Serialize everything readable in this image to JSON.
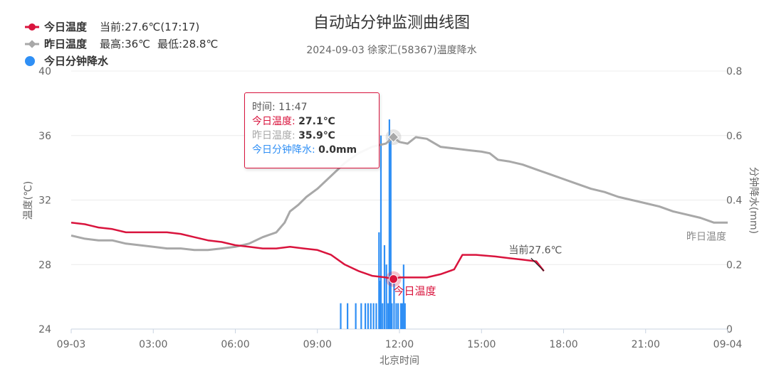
{
  "title": "自动站分钟监测曲线图",
  "subtitle": "2024-09-03 徐家汇(58367)温度降水",
  "legend": {
    "today": {
      "name": "今日温度",
      "stat": "当前:27.6℃(17:17)"
    },
    "yesterday": {
      "name": "昨日温度",
      "stat1": "最高:36℃",
      "stat2": "最低:28.8℃"
    },
    "rain": {
      "name": "今日分钟降水"
    }
  },
  "colors": {
    "today": "#d9143d",
    "yesterday": "#a8a8a8",
    "rain": "#2f8ff5"
  },
  "tooltip": {
    "time_label": "时间: ",
    "time": "11:47",
    "today_label": "今日温度: ",
    "today": "27.1℃",
    "yesterday_label": "昨日温度: ",
    "yesterday": "35.9℃",
    "rain_label": "今日分钟降水: ",
    "rain": "0.0mm"
  },
  "annotations": {
    "current": "当前27.6℃",
    "today_series_label": "今日温度",
    "yesterday_series_label": "昨日温度"
  },
  "chart_data": {
    "type": "line",
    "xlabel": "北京时间",
    "ylabel_left": "温度(℃)",
    "ylabel_right": "分钟降水(mm)",
    "x_ticks": [
      "09-03",
      "03:00",
      "06:00",
      "09:00",
      "12:00",
      "15:00",
      "18:00",
      "21:00",
      "09-04"
    ],
    "y_left_ticks": [
      "24",
      "28",
      "32",
      "36",
      "40"
    ],
    "y_right_ticks": [
      "0",
      "0.2",
      "0.4",
      "0.6",
      "0.8"
    ],
    "ylim_left": [
      24,
      40
    ],
    "ylim_right": [
      0,
      0.8
    ],
    "x_range_hours": [
      0,
      24
    ],
    "series": [
      {
        "name": "今日温度",
        "unit": "℃",
        "points": [
          [
            0,
            30.6
          ],
          [
            0.5,
            30.5
          ],
          [
            1,
            30.3
          ],
          [
            1.5,
            30.2
          ],
          [
            2,
            30.0
          ],
          [
            2.5,
            30.0
          ],
          [
            3,
            30.0
          ],
          [
            3.5,
            30.0
          ],
          [
            4,
            29.9
          ],
          [
            4.5,
            29.7
          ],
          [
            5,
            29.5
          ],
          [
            5.5,
            29.4
          ],
          [
            6,
            29.2
          ],
          [
            6.5,
            29.1
          ],
          [
            7,
            29.0
          ],
          [
            7.5,
            29.0
          ],
          [
            8,
            29.1
          ],
          [
            8.5,
            29.0
          ],
          [
            9,
            28.9
          ],
          [
            9.5,
            28.6
          ],
          [
            10,
            28.0
          ],
          [
            10.5,
            27.6
          ],
          [
            11,
            27.3
          ],
          [
            11.5,
            27.2
          ],
          [
            11.78,
            27.1
          ],
          [
            12,
            27.2
          ],
          [
            12.5,
            27.2
          ],
          [
            13,
            27.2
          ],
          [
            13.5,
            27.4
          ],
          [
            14,
            27.7
          ],
          [
            14.3,
            28.6
          ],
          [
            14.8,
            28.6
          ],
          [
            15.5,
            28.5
          ],
          [
            16,
            28.4
          ],
          [
            16.5,
            28.3
          ],
          [
            17,
            28.2
          ],
          [
            17.28,
            27.6
          ]
        ]
      },
      {
        "name": "昨日温度",
        "unit": "℃",
        "points": [
          [
            0,
            29.8
          ],
          [
            0.5,
            29.6
          ],
          [
            1,
            29.5
          ],
          [
            1.5,
            29.5
          ],
          [
            2,
            29.3
          ],
          [
            2.5,
            29.2
          ],
          [
            3,
            29.1
          ],
          [
            3.5,
            29.0
          ],
          [
            4,
            29.0
          ],
          [
            4.5,
            28.9
          ],
          [
            5,
            28.9
          ],
          [
            5.5,
            29.0
          ],
          [
            6,
            29.1
          ],
          [
            6.5,
            29.3
          ],
          [
            7,
            29.7
          ],
          [
            7.5,
            30.0
          ],
          [
            7.8,
            30.6
          ],
          [
            8,
            31.3
          ],
          [
            8.3,
            31.7
          ],
          [
            8.6,
            32.2
          ],
          [
            9,
            32.7
          ],
          [
            9.5,
            33.5
          ],
          [
            10,
            34.3
          ],
          [
            10.5,
            34.9
          ],
          [
            11,
            35.3
          ],
          [
            11.5,
            35.5
          ],
          [
            11.78,
            35.9
          ],
          [
            12,
            35.6
          ],
          [
            12.3,
            35.5
          ],
          [
            12.6,
            35.9
          ],
          [
            13,
            35.8
          ],
          [
            13.5,
            35.3
          ],
          [
            14,
            35.2
          ],
          [
            14.5,
            35.1
          ],
          [
            15,
            35.0
          ],
          [
            15.3,
            34.9
          ],
          [
            15.6,
            34.5
          ],
          [
            16,
            34.4
          ],
          [
            16.5,
            34.2
          ],
          [
            17,
            33.9
          ],
          [
            17.5,
            33.6
          ],
          [
            18,
            33.3
          ],
          [
            18.5,
            33.0
          ],
          [
            19,
            32.7
          ],
          [
            19.5,
            32.5
          ],
          [
            20,
            32.2
          ],
          [
            20.5,
            32.0
          ],
          [
            21,
            31.8
          ],
          [
            21.5,
            31.6
          ],
          [
            22,
            31.3
          ],
          [
            22.5,
            31.1
          ],
          [
            23,
            30.9
          ],
          [
            23.5,
            30.6
          ],
          [
            24,
            30.6
          ]
        ]
      },
      {
        "name": "今日分钟降水",
        "unit": "mm",
        "type": "bar",
        "points": [
          [
            9.85,
            0.08
          ],
          [
            10.1,
            0.08
          ],
          [
            10.4,
            0.08
          ],
          [
            10.6,
            0.08
          ],
          [
            10.75,
            0.08
          ],
          [
            10.85,
            0.08
          ],
          [
            10.95,
            0.08
          ],
          [
            11.05,
            0.08
          ],
          [
            11.15,
            0.08
          ],
          [
            11.25,
            0.3
          ],
          [
            11.28,
            0.15
          ],
          [
            11.32,
            0.6
          ],
          [
            11.38,
            0.08
          ],
          [
            11.45,
            0.26
          ],
          [
            11.52,
            0.2
          ],
          [
            11.58,
            0.08
          ],
          [
            11.63,
            0.65
          ],
          [
            11.68,
            0.6
          ],
          [
            11.72,
            0.08
          ],
          [
            11.8,
            0.15
          ],
          [
            11.88,
            0.08
          ],
          [
            11.95,
            0.08
          ],
          [
            12.05,
            0.08
          ],
          [
            12.1,
            0.08
          ],
          [
            12.15,
            0.2
          ],
          [
            12.2,
            0.08
          ]
        ]
      }
    ],
    "hover": {
      "time_hours": 11.78,
      "today": 27.1,
      "yesterday": 35.9,
      "rain": 0.0
    }
  }
}
